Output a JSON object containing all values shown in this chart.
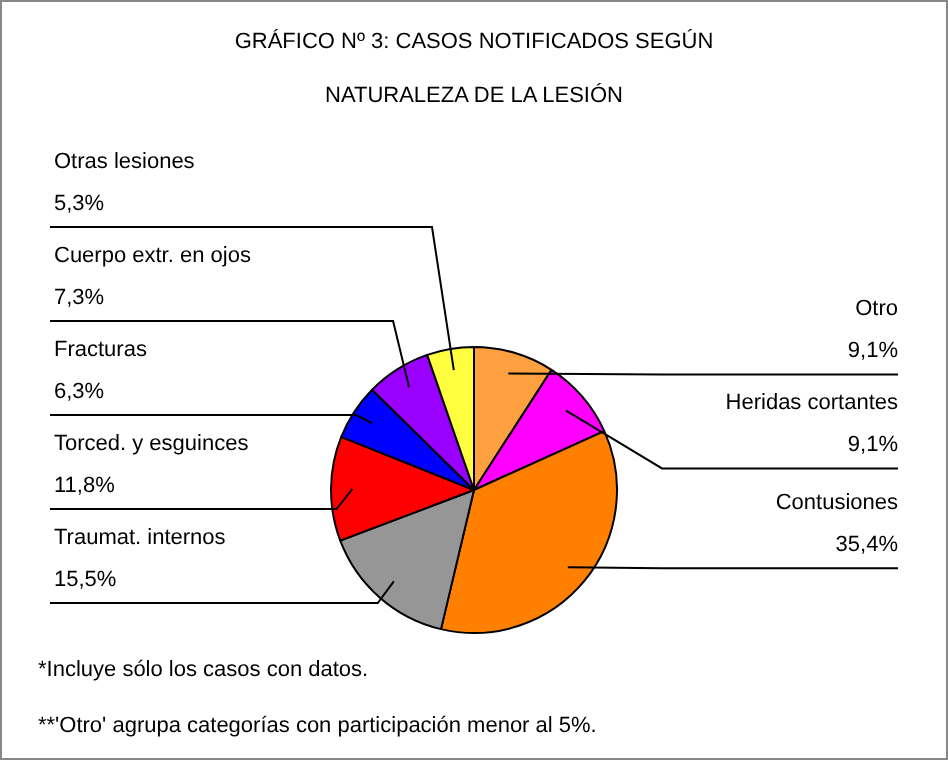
{
  "chart_data": {
    "type": "pie",
    "title": "GRÁFICO Nº 3: CASOS NOTIFICADOS SEGÚN",
    "subtitle": "NATURALEZA DE LA LESIÓN",
    "categories": [
      "Otro",
      "Heridas cortantes",
      "Contusiones",
      "Traumat. internos",
      "Torced. y esguinces",
      "Fracturas",
      "Cuerpo extr. en ojos",
      "Otras lesiones"
    ],
    "values": [
      9.1,
      9.1,
      35.4,
      15.5,
      11.8,
      6.3,
      7.3,
      5.3
    ],
    "value_labels": [
      "9,1%",
      "9,1%",
      "35,4%",
      "15,5%",
      "11,8%",
      "6,3%",
      "7,3%",
      "5,3%"
    ],
    "colors": [
      "#ffa040",
      "#ff00ff",
      "#ff8000",
      "#969696",
      "#ff0000",
      "#0000ff",
      "#9900ff",
      "#ffff40"
    ],
    "legend": false,
    "annotations": [
      "*Incluye sólo los casos con datos.",
      "**'Otro' agrupa categorías con participación menor al 5%."
    ]
  }
}
